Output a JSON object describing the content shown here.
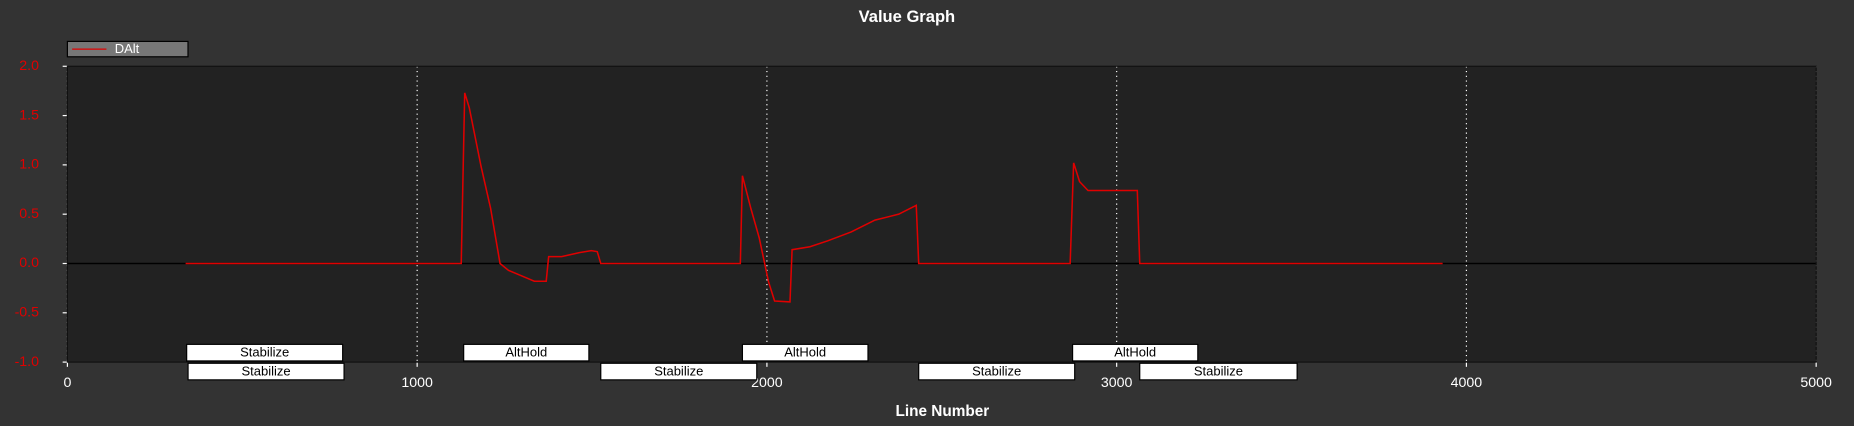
{
  "chart_data": {
    "type": "line",
    "title": "Value Graph",
    "x_label": "Line Number",
    "xlim": [
      0,
      5000
    ],
    "xticks": [
      0,
      1000,
      2000,
      3000,
      4000,
      5000
    ],
    "ylim": [
      -1,
      2
    ],
    "yticks": [
      {
        "value": -1,
        "label": "-1.0"
      },
      -0.5,
      {
        "value": 0,
        "label": "0.0"
      },
      0.5,
      {
        "value": 1,
        "label": "1.0"
      },
      1.5,
      {
        "value": 2,
        "label": "2.0"
      }
    ],
    "grid": "x",
    "legend": "top-left",
    "series": [
      {
        "name": "DAlt",
        "color": "#e00000",
        "x": [
          338,
          1126,
          1136,
          1149,
          1183,
          1210,
          1237,
          1261,
          1295,
          1335,
          1369,
          1376,
          1413,
          1464,
          1498,
          1515,
          1525,
          1924,
          1930,
          1954,
          1978,
          2005,
          2022,
          2066,
          2072,
          2123,
          2174,
          2241,
          2309,
          2377,
          2427,
          2434,
          2867,
          2877,
          2894,
          2918,
          3059,
          3066,
          3932
        ],
        "values": [
          0,
          0,
          1.73,
          1.58,
          0.98,
          0.56,
          0,
          -0.07,
          -0.12,
          -0.18,
          -0.18,
          0.07,
          0.07,
          0.11,
          0.13,
          0.12,
          0,
          0,
          0.89,
          0.56,
          0.26,
          -0.19,
          -0.38,
          -0.39,
          0.14,
          0.17,
          0.23,
          0.32,
          0.44,
          0.5,
          0.59,
          0,
          0,
          1.02,
          0.83,
          0.74,
          0.74,
          0,
          0
        ]
      }
    ],
    "modes": [
      [
        {
          "label": "Stabilize",
          "range": [
            341,
            787
          ]
        },
        {
          "label": "AltHold",
          "range": [
            1133,
            1491
          ]
        },
        {
          "label": "AltHold",
          "range": [
            1930,
            2289
          ]
        },
        {
          "label": "AltHold",
          "range": [
            2874,
            3232
          ]
        }
      ],
      [
        {
          "label": "Stabilize",
          "range": [
            345,
            791
          ]
        },
        {
          "label": "Stabilize",
          "range": [
            1525,
            1971
          ]
        },
        {
          "label": "Stabilize",
          "range": [
            2434,
            2880
          ]
        },
        {
          "label": "Stabilize",
          "range": [
            3066,
            3516
          ]
        }
      ]
    ]
  }
}
